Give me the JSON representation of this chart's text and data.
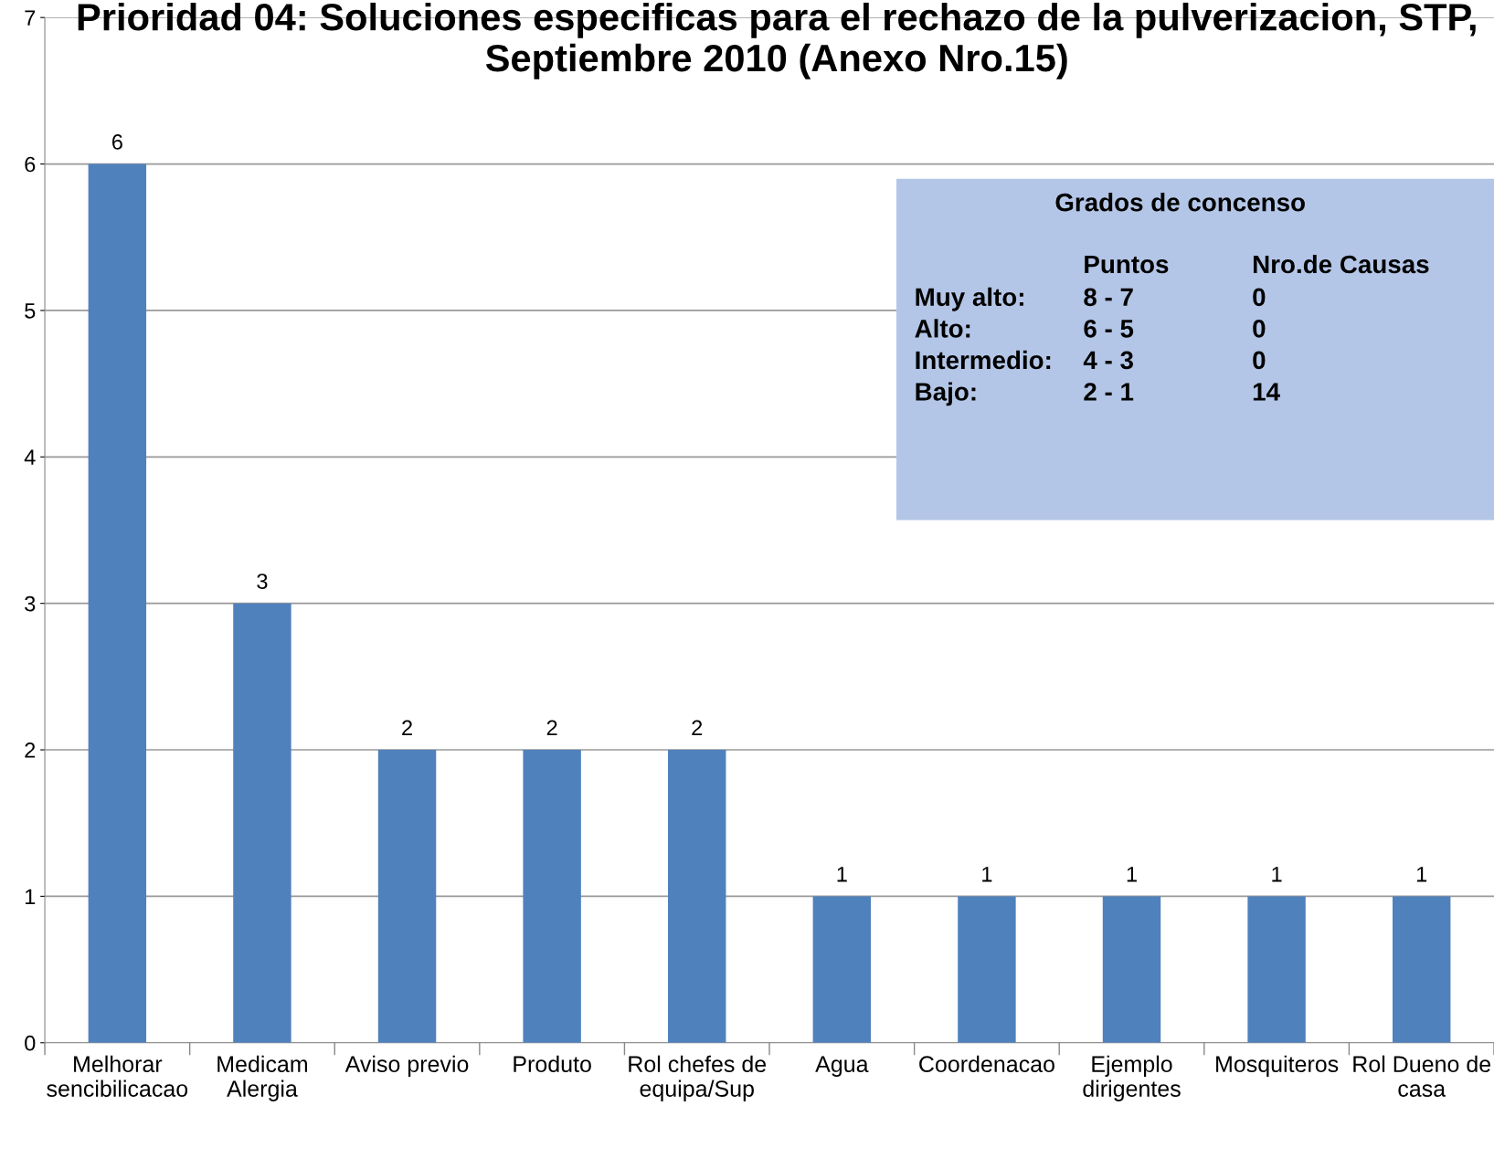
{
  "chart_data": {
    "type": "bar",
    "title": "Prioridad 04: Soluciones especificas para el rechazo de la pulverizacion, STP, Septiembre 2010 (Anexo Nro.15)",
    "categories": [
      "Melhorar\nsencibilicacao",
      "Medicam\nAlergia",
      "Aviso previo",
      "Produto",
      "Rol chefes de\nequipa/Sup",
      "Agua",
      "Coordenacao",
      "Ejemplo\ndirigentes",
      "Mosquiteros",
      "Rol Dueno de\ncasa"
    ],
    "values": [
      6,
      3,
      2,
      2,
      2,
      1,
      1,
      1,
      1,
      1
    ],
    "color": "#4f81bd",
    "ylim": [
      0,
      7
    ],
    "yticks": [
      0,
      1,
      2,
      3,
      4,
      5,
      6,
      7
    ],
    "grid": "y",
    "data_labels": true,
    "annotations": [
      "Grados de concenso",
      "Puntos",
      "Nro.de Causas",
      "Muy alto:",
      "8 - 7",
      "0",
      "Alto:",
      "6 - 5",
      "0",
      "Intermedio:",
      "4 - 3",
      "0",
      "Bajo:",
      "2 - 1",
      "14"
    ]
  }
}
